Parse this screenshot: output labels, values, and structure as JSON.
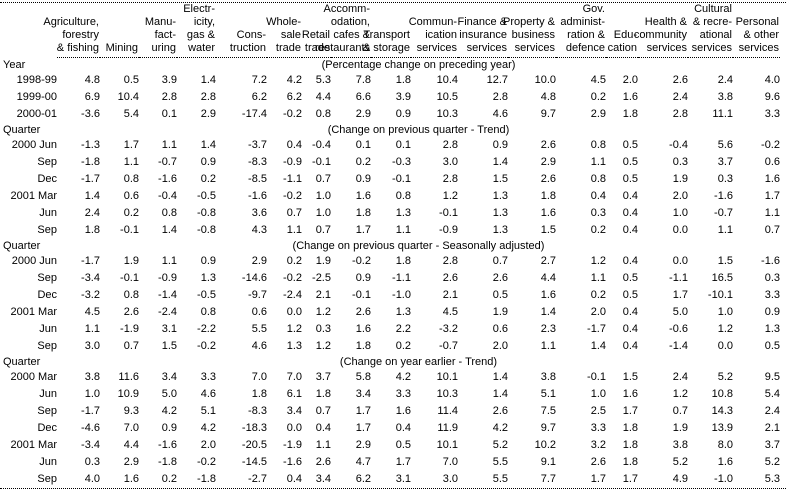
{
  "table": {
    "columns": [
      {
        "id": "agriculture-forestry-fishing",
        "lines": [
          "Agriculture,",
          "forestry",
          "& fishing"
        ]
      },
      {
        "id": "mining",
        "lines": [
          "Mining"
        ]
      },
      {
        "id": "manufacturing",
        "lines": [
          "Manu-",
          "fact-",
          "uring"
        ]
      },
      {
        "id": "electricity-gas-water",
        "lines": [
          "Electr-",
          "icity,",
          "gas &",
          "water"
        ]
      },
      {
        "id": "construction",
        "lines": [
          "Cons-",
          "truction"
        ]
      },
      {
        "id": "wholesale-trade",
        "lines": [
          "Whole-",
          "sale",
          "trade"
        ]
      },
      {
        "id": "retail-trade",
        "lines": [
          "Retail",
          "trade"
        ]
      },
      {
        "id": "accommodation-cafes-restaurants",
        "lines": [
          "Accomm-",
          "odation,",
          "cafes &",
          "restaurants"
        ]
      },
      {
        "id": "transport-storage",
        "lines": [
          "Transport",
          "& storage"
        ]
      },
      {
        "id": "communication-services",
        "lines": [
          "Commun-",
          "ication",
          "services"
        ]
      },
      {
        "id": "finance-insurance-services",
        "lines": [
          "Finance &",
          "insurance",
          "services"
        ]
      },
      {
        "id": "property-business-services",
        "lines": [
          "Property &",
          "business",
          "services"
        ]
      },
      {
        "id": "gov-administration-defence",
        "lines": [
          "Gov.",
          "administ-",
          "ration &",
          "defence"
        ]
      },
      {
        "id": "education",
        "lines": [
          "Edu-",
          "cation"
        ]
      },
      {
        "id": "health-community-services",
        "lines": [
          "Health &",
          "community",
          "services"
        ]
      },
      {
        "id": "cultural-recreational-services",
        "lines": [
          "Cultural",
          "& recre-",
          "ational",
          "services"
        ]
      },
      {
        "id": "personal-other-services",
        "lines": [
          "Personal",
          "& other",
          "services"
        ]
      }
    ],
    "sections": [
      {
        "label": "Year",
        "note": "(Percentage change on preceding year)",
        "rows": [
          {
            "label": "1998-99",
            "values": [
              "4.8",
              "0.5",
              "3.9",
              "1.4",
              "7.2",
              "4.2",
              "5.3",
              "7.8",
              "1.8",
              "10.4",
              "12.7",
              "10.0",
              "4.5",
              "2.0",
              "2.6",
              "2.4",
              "4.0"
            ]
          },
          {
            "label": "1999-00",
            "values": [
              "6.9",
              "10.4",
              "2.8",
              "2.8",
              "6.2",
              "6.2",
              "4.4",
              "6.6",
              "3.9",
              "10.5",
              "2.8",
              "4.8",
              "0.2",
              "1.6",
              "2.4",
              "3.8",
              "9.6"
            ]
          },
          {
            "label": "2000-01",
            "values": [
              "-3.6",
              "5.4",
              "0.1",
              "2.9",
              "-17.4",
              "-0.2",
              "0.8",
              "2.9",
              "0.9",
              "10.3",
              "4.6",
              "9.7",
              "2.9",
              "1.8",
              "2.8",
              "11.1",
              "3.3"
            ]
          }
        ]
      },
      {
        "label": "Quarter",
        "note": "(Change on previous quarter - Trend)",
        "rows": [
          {
            "label": "2000 Jun",
            "values": [
              "-1.3",
              "1.7",
              "1.1",
              "1.4",
              "-3.7",
              "0.4",
              "-0.4",
              "0.1",
              "0.1",
              "2.8",
              "0.9",
              "2.6",
              "0.8",
              "0.5",
              "-0.4",
              "5.6",
              "-0.2"
            ]
          },
          {
            "label": "Sep",
            "values": [
              "-1.8",
              "1.1",
              "-0.7",
              "0.9",
              "-8.3",
              "-0.9",
              "-0.1",
              "0.2",
              "-0.3",
              "3.0",
              "1.4",
              "2.9",
              "1.1",
              "0.5",
              "0.3",
              "3.7",
              "0.6"
            ]
          },
          {
            "label": "Dec",
            "values": [
              "-1.7",
              "0.8",
              "-1.6",
              "0.2",
              "-8.5",
              "-1.1",
              "0.7",
              "0.9",
              "-0.1",
              "2.8",
              "1.5",
              "2.6",
              "0.8",
              "0.5",
              "1.9",
              "0.3",
              "1.6"
            ]
          },
          {
            "label": "2001 Mar",
            "values": [
              "1.4",
              "0.6",
              "-0.4",
              "-0.5",
              "-1.6",
              "-0.2",
              "1.0",
              "1.6",
              "0.8",
              "1.2",
              "1.3",
              "1.8",
              "0.4",
              "0.4",
              "2.0",
              "-1.6",
              "1.7"
            ]
          },
          {
            "label": "Jun",
            "values": [
              "2.4",
              "0.2",
              "0.8",
              "-0.8",
              "3.6",
              "0.7",
              "1.0",
              "1.8",
              "1.3",
              "-0.1",
              "1.3",
              "1.6",
              "0.3",
              "0.4",
              "1.0",
              "-0.7",
              "1.1"
            ]
          },
          {
            "label": "Sep",
            "values": [
              "1.8",
              "-0.1",
              "1.4",
              "-0.8",
              "4.3",
              "1.1",
              "0.7",
              "1.7",
              "1.1",
              "-0.9",
              "1.3",
              "1.5",
              "0.2",
              "0.4",
              "0.0",
              "1.1",
              "0.7"
            ]
          }
        ]
      },
      {
        "label": "Quarter",
        "note": "(Change on previous quarter - Seasonally adjusted)",
        "rows": [
          {
            "label": "2000 Jun",
            "values": [
              "-1.7",
              "1.9",
              "1.1",
              "0.9",
              "2.9",
              "0.2",
              "1.9",
              "-0.2",
              "1.8",
              "2.8",
              "0.7",
              "2.7",
              "1.2",
              "0.4",
              "0.0",
              "1.5",
              "-1.6"
            ]
          },
          {
            "label": "Sep",
            "values": [
              "-3.4",
              "-0.1",
              "-0.9",
              "1.3",
              "-14.6",
              "-0.2",
              "-2.5",
              "0.9",
              "-1.1",
              "2.6",
              "2.6",
              "4.4",
              "1.1",
              "0.5",
              "-1.1",
              "16.5",
              "0.3"
            ]
          },
          {
            "label": "Dec",
            "values": [
              "-3.2",
              "0.8",
              "-1.4",
              "-0.5",
              "-9.7",
              "-2.4",
              "2.1",
              "-0.1",
              "-1.0",
              "2.1",
              "0.5",
              "1.6",
              "0.2",
              "0.5",
              "1.7",
              "-10.1",
              "3.3"
            ]
          },
          {
            "label": "2001 Mar",
            "values": [
              "4.5",
              "2.6",
              "-2.4",
              "0.8",
              "0.6",
              "0.0",
              "1.2",
              "2.6",
              "1.3",
              "4.5",
              "1.9",
              "1.4",
              "2.0",
              "0.4",
              "5.0",
              "1.0",
              "0.9"
            ]
          },
          {
            "label": "Jun",
            "values": [
              "1.1",
              "-1.9",
              "3.1",
              "-2.2",
              "5.5",
              "1.2",
              "0.3",
              "1.6",
              "2.2",
              "-3.2",
              "0.6",
              "2.3",
              "-1.7",
              "0.4",
              "-0.6",
              "1.2",
              "1.3"
            ]
          },
          {
            "label": "Sep",
            "values": [
              "3.0",
              "0.7",
              "1.5",
              "-0.2",
              "4.6",
              "1.3",
              "1.2",
              "1.8",
              "0.2",
              "-0.7",
              "2.0",
              "1.1",
              "1.4",
              "0.4",
              "-1.4",
              "0.0",
              "0.5"
            ]
          }
        ]
      },
      {
        "label": "Quarter",
        "note": "(Change on year earlier - Trend)",
        "rows": [
          {
            "label": "2000 Mar",
            "values": [
              "3.8",
              "11.6",
              "3.4",
              "3.3",
              "7.0",
              "7.0",
              "3.7",
              "5.8",
              "4.2",
              "10.1",
              "1.4",
              "3.8",
              "-0.1",
              "1.5",
              "2.4",
              "5.2",
              "9.5"
            ]
          },
          {
            "label": "Jun",
            "values": [
              "1.0",
              "10.9",
              "5.0",
              "4.6",
              "1.8",
              "6.1",
              "1.8",
              "3.4",
              "3.3",
              "10.3",
              "1.4",
              "5.1",
              "1.0",
              "1.6",
              "1.2",
              "10.8",
              "5.4"
            ]
          },
          {
            "label": "Sep",
            "values": [
              "-1.7",
              "9.3",
              "4.2",
              "5.1",
              "-8.3",
              "3.4",
              "0.7",
              "1.7",
              "1.6",
              "11.4",
              "2.6",
              "7.5",
              "2.5",
              "1.7",
              "0.7",
              "14.3",
              "2.4"
            ]
          },
          {
            "label": "Dec",
            "values": [
              "-4.6",
              "7.0",
              "0.9",
              "4.2",
              "-18.3",
              "0.0",
              "0.4",
              "1.7",
              "0.4",
              "11.9",
              "4.2",
              "9.7",
              "3.3",
              "1.8",
              "1.9",
              "13.9",
              "2.1"
            ]
          },
          {
            "label": "2001 Mar",
            "values": [
              "-3.4",
              "4.4",
              "-1.6",
              "2.0",
              "-20.5",
              "-1.9",
              "1.1",
              "2.9",
              "0.5",
              "10.1",
              "5.2",
              "10.2",
              "3.2",
              "1.8",
              "3.8",
              "8.0",
              "3.7"
            ]
          },
          {
            "label": "Jun",
            "values": [
              "0.3",
              "2.9",
              "-1.8",
              "-0.2",
              "-14.5",
              "-1.6",
              "2.6",
              "4.7",
              "1.7",
              "7.0",
              "5.5",
              "9.1",
              "2.6",
              "1.8",
              "5.2",
              "1.6",
              "5.2"
            ]
          },
          {
            "label": "Sep",
            "values": [
              "4.0",
              "1.6",
              "0.2",
              "-1.8",
              "-2.7",
              "0.4",
              "3.4",
              "6.2",
              "3.1",
              "3.0",
              "5.5",
              "7.7",
              "1.7",
              "1.7",
              "4.9",
              "-1.0",
              "5.3"
            ]
          }
        ]
      }
    ]
  }
}
